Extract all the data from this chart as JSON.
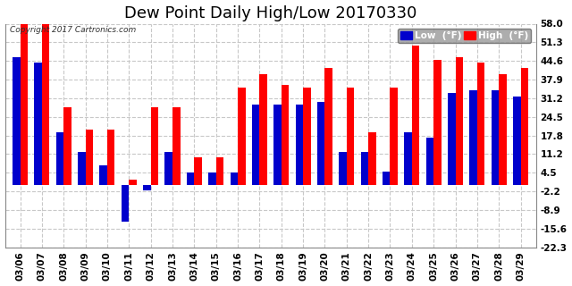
{
  "title": "Dew Point Daily High/Low 20170330",
  "copyright": "Copyright 2017 Cartronics.com",
  "dates": [
    "03/06",
    "03/07",
    "03/08",
    "03/09",
    "03/10",
    "03/11",
    "03/12",
    "03/13",
    "03/14",
    "03/15",
    "03/16",
    "03/17",
    "03/18",
    "03/19",
    "03/20",
    "03/21",
    "03/22",
    "03/23",
    "03/24",
    "03/25",
    "03/26",
    "03/27",
    "03/28",
    "03/29"
  ],
  "high": [
    58.0,
    58.0,
    28.0,
    20.0,
    20.0,
    2.0,
    28.0,
    28.0,
    10.0,
    10.0,
    35.0,
    40.0,
    36.0,
    35.0,
    42.0,
    35.0,
    19.0,
    35.0,
    50.0,
    45.0,
    46.0,
    44.0,
    40.0,
    42.0
  ],
  "low": [
    46.0,
    44.0,
    19.0,
    12.0,
    7.0,
    -13.0,
    -2.0,
    12.0,
    4.5,
    4.5,
    4.5,
    29.0,
    29.0,
    29.0,
    30.0,
    12.0,
    12.0,
    5.0,
    19.0,
    17.0,
    33.0,
    34.0,
    34.0,
    32.0
  ],
  "ylim": [
    -22.3,
    58.0
  ],
  "yticks": [
    58.0,
    51.3,
    44.6,
    37.9,
    31.2,
    24.5,
    17.8,
    11.2,
    4.5,
    -2.2,
    -8.9,
    -15.6,
    -22.3
  ],
  "high_color": "#ff0000",
  "low_color": "#0000cc",
  "bg_color": "#ffffff",
  "grid_color": "#c8c8c8",
  "bar_width": 0.35,
  "title_fontsize": 13,
  "label_fontsize": 7.5
}
